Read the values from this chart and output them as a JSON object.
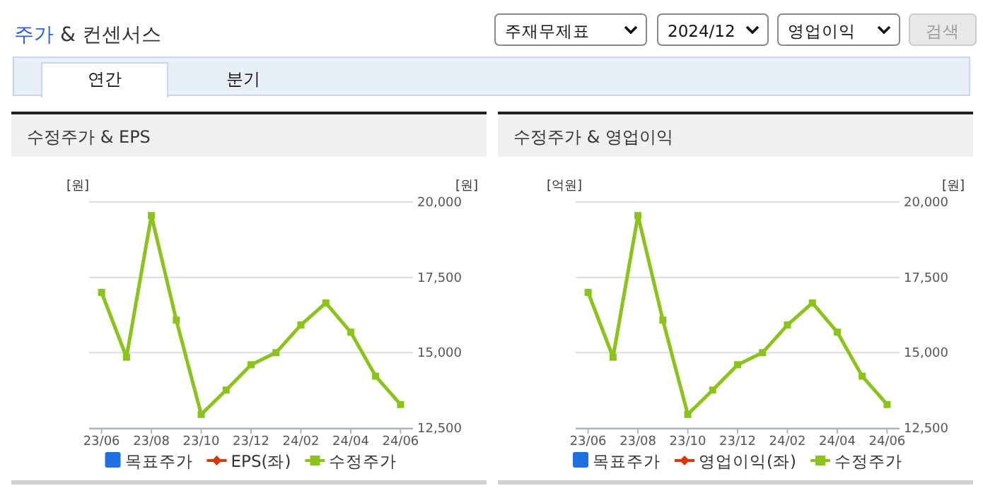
{
  "chart_data": [
    {
      "type": "other",
      "title": "주가 & 컨센서스",
      "annotations": [
        "주재무제표",
        "2024/12",
        "영업이익",
        "검색",
        "연간",
        "분기"
      ]
    },
    {
      "type": "line",
      "title": "수정주가 & EPS",
      "categories": [
        "23/06",
        null,
        "23/08",
        null,
        "23/10",
        null,
        "23/12",
        null,
        "24/02",
        null,
        "24/04",
        null,
        "24/06"
      ],
      "ylabel": "[원]",
      "y2label": "[원]",
      "y2lim": [
        12500,
        20000
      ],
      "y2ticks": [
        {
          "value": 12500,
          "label": "12,500"
        },
        {
          "value": 15000,
          "label": "15,000"
        },
        {
          "value": 17500,
          "label": "17,500"
        },
        {
          "value": 20000,
          "label": "20,000"
        }
      ],
      "marker": "square",
      "grid": "y",
      "legend": "bottom",
      "series": [
        {
          "name": "목표주가",
          "type": "bar",
          "color": "#1f6fe0",
          "values": [
            null,
            null,
            null,
            null,
            null,
            null,
            null,
            null,
            null,
            null,
            null,
            null,
            null
          ]
        },
        {
          "name": "EPS(좌)",
          "color": "#d63a0a",
          "marker": "diamond",
          "values": [
            null,
            null,
            null,
            null,
            null,
            null,
            null,
            null,
            null,
            null,
            null,
            null,
            null
          ]
        },
        {
          "name": "수정주가",
          "color": "#8cc21c",
          "axis": "y2",
          "values": [
            17000,
            14850,
            19550,
            16080,
            12950,
            13760,
            14600,
            15000,
            15920,
            16650,
            15680,
            14220,
            13280
          ]
        }
      ]
    },
    {
      "type": "line",
      "title": "수정주가 & 영업이익",
      "categories": [
        "23/06",
        null,
        "23/08",
        null,
        "23/10",
        null,
        "23/12",
        null,
        "24/02",
        null,
        "24/04",
        null,
        "24/06"
      ],
      "ylabel": "[억원]",
      "y2label": "[원]",
      "y2lim": [
        12500,
        20000
      ],
      "y2ticks": [
        {
          "value": 12500,
          "label": "12,500"
        },
        {
          "value": 15000,
          "label": "15,000"
        },
        {
          "value": 17500,
          "label": "17,500"
        },
        {
          "value": 20000,
          "label": "20,000"
        }
      ],
      "marker": "square",
      "grid": "y",
      "legend": "bottom",
      "series": [
        {
          "name": "목표주가",
          "type": "bar",
          "color": "#1f6fe0",
          "values": [
            null,
            null,
            null,
            null,
            null,
            null,
            null,
            null,
            null,
            null,
            null,
            null,
            null
          ]
        },
        {
          "name": "영업이익(좌)",
          "color": "#d63a0a",
          "marker": "diamond",
          "values": [
            null,
            null,
            null,
            null,
            null,
            null,
            null,
            null,
            null,
            null,
            null,
            null,
            null
          ]
        },
        {
          "name": "수정주가",
          "color": "#8cc21c",
          "axis": "y2",
          "values": [
            17000,
            14850,
            19550,
            16080,
            12950,
            13760,
            14600,
            15000,
            15920,
            16650,
            15680,
            14220,
            13280
          ]
        }
      ]
    }
  ]
}
